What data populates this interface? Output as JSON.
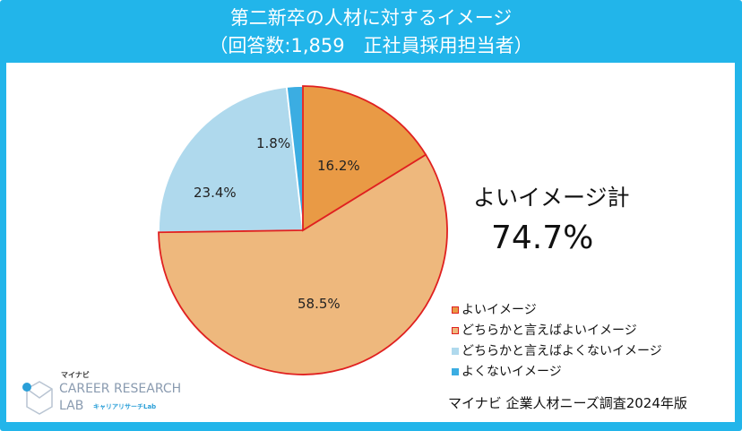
{
  "header": {
    "title": "第二新卒の人材に対するイメージ",
    "subtitle": "（回答数:1,859　正社員採用担当者）"
  },
  "summary": {
    "label": "よいイメージ計",
    "value": "74.7%"
  },
  "source": "マイナビ 企業人材ニーズ調査2024年版",
  "logo": {
    "brand": "マイナビ",
    "line1": "CAREER RESEARCH",
    "line2": "LAB",
    "line2_sub": "キャリアリサーチLab"
  },
  "chart_data": {
    "type": "pie",
    "start": "top",
    "direction": "clockwise",
    "categories": [
      "よいイメージ",
      "どちらかと言えばよいイメージ",
      "どちらかと言えばよくないイメージ",
      "よくないイメージ"
    ],
    "values": [
      16.2,
      58.5,
      23.4,
      1.8
    ],
    "data_labels": [
      "16.2%",
      "58.5%",
      "23.4%",
      "1.8%"
    ],
    "colors": [
      "#e99a45",
      "#eeb87d",
      "#afd9ed",
      "#3badE2"
    ],
    "stroke_colors": [
      "#e02020",
      "#e02020",
      "#ffffff",
      "#ffffff"
    ],
    "legend": "right"
  }
}
